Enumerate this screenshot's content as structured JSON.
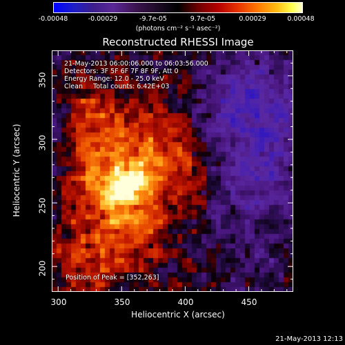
{
  "colorbar": {
    "ticks": [
      "-0.00048",
      "-0.00029",
      "-9.7e-05",
      "9.7e-05",
      "0.00029",
      "0.00048"
    ],
    "units": "(photons cm⁻² s⁻¹ asec⁻²)"
  },
  "title": "Reconstructed RHESSI Image",
  "info": {
    "line1": "21-May-2013 06:00:06.000 to 06:03:56.000",
    "line2": "Detectors: 3F 5F 6F 7F 8F 9F, Att 0",
    "line3": "Energy Range: 12.0 - 25.0 keV",
    "line4": "Clean     Total counts: 6.42E+03",
    "peak": "Position of Peak = [352,263]"
  },
  "axes": {
    "xticks": [
      "300",
      "350",
      "400",
      "450"
    ],
    "yticks": [
      "200",
      "250",
      "300",
      "350"
    ],
    "xlabel": "Heliocentric X (arcsec)",
    "ylabel": "Heliocentric Y (arcsec)"
  },
  "timestamp": "21-May-2013 12:13",
  "chart_data": {
    "type": "heatmap",
    "title": "Reconstructed RHESSI Image",
    "xlabel": "Heliocentric X (arcsec)",
    "ylabel": "Heliocentric Y (arcsec)",
    "xlim": [
      295,
      485
    ],
    "ylim": [
      180,
      370
    ],
    "color_range": [
      -0.00048,
      0.00048
    ],
    "peak_position": [
      352,
      263
    ]
  }
}
